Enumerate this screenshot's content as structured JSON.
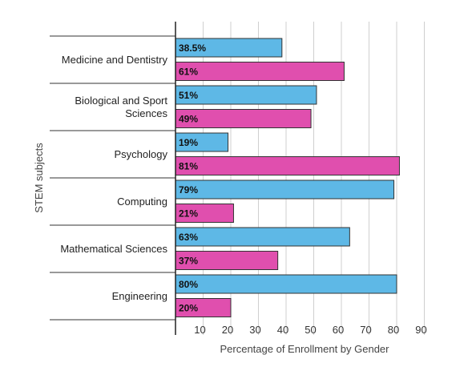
{
  "chart_data": {
    "type": "bar",
    "orientation": "horizontal",
    "categories": [
      "Medicine and Dentistry",
      "Biological and Sport Sciences",
      "Psychology",
      "Computing",
      "Mathematical Sciences",
      "Engineering"
    ],
    "category_label_lines": [
      [
        "Medicine and Dentistry"
      ],
      [
        "Biological and Sport",
        "Sciences"
      ],
      [
        "Psychology"
      ],
      [
        "Computing"
      ],
      [
        "Mathematical Sciences"
      ],
      [
        "Engineering"
      ]
    ],
    "series": [
      {
        "color": "#5eb8e6",
        "values": [
          38.5,
          51,
          19,
          79,
          63,
          80
        ],
        "labels": [
          "38.5%",
          "51%",
          "19%",
          "79%",
          "63%",
          "80%"
        ]
      },
      {
        "color": "#e04fae",
        "values": [
          61,
          49,
          81,
          21,
          37,
          20
        ],
        "labels": [
          "61%",
          "49%",
          "81%",
          "21%",
          "37%",
          "20%"
        ]
      }
    ],
    "xlim": [
      0,
      90
    ],
    "xticks": [
      "10",
      "20",
      "30",
      "40",
      "50",
      "60",
      "70",
      "80",
      "90"
    ],
    "xlabel": "Percentage of Enrollment by Gender",
    "ylabel": "STEM subjects",
    "grid": true,
    "legend": "none"
  }
}
